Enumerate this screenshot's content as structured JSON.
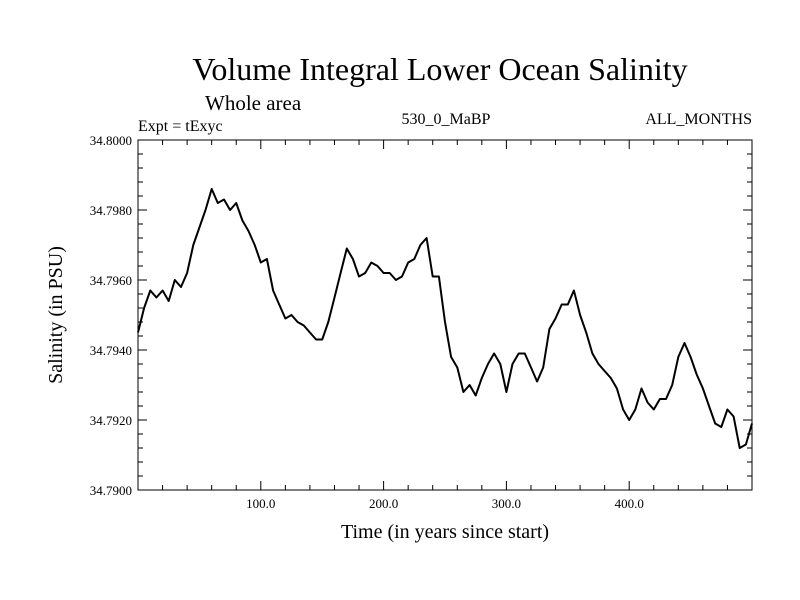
{
  "chart_data": {
    "type": "line",
    "title": "Volume Integral Lower Ocean Salinity",
    "subtitle": "Whole area",
    "header_left": "Expt = tExyc",
    "header_center": "530_0_MaBP",
    "header_right": "ALL_MONTHS",
    "xlabel": "Time (in years since start)",
    "ylabel": "Salinity (in PSU)",
    "xlim": [
      0,
      500
    ],
    "ylim": [
      34.79,
      34.8
    ],
    "x_ticks": [
      100,
      200,
      300,
      400
    ],
    "x_tick_labels": [
      "100.0",
      "200.0",
      "300.0",
      "400.0"
    ],
    "y_ticks": [
      34.79,
      34.792,
      34.794,
      34.796,
      34.798,
      34.8
    ],
    "y_tick_labels": [
      "34.7900",
      "34.7920",
      "34.7940",
      "34.7960",
      "34.7980",
      "34.8000"
    ],
    "grid": false,
    "series": [
      {
        "color": "#000000",
        "x": [
          0,
          5,
          10,
          15,
          20,
          25,
          30,
          35,
          40,
          45,
          50,
          55,
          60,
          65,
          70,
          75,
          80,
          85,
          90,
          95,
          100,
          105,
          110,
          115,
          120,
          125,
          130,
          135,
          140,
          145,
          150,
          155,
          160,
          165,
          170,
          175,
          180,
          185,
          190,
          195,
          200,
          205,
          210,
          215,
          220,
          225,
          230,
          235,
          240,
          245,
          250,
          255,
          260,
          265,
          270,
          275,
          280,
          285,
          290,
          295,
          300,
          305,
          310,
          315,
          320,
          325,
          330,
          335,
          340,
          345,
          350,
          355,
          360,
          365,
          370,
          375,
          380,
          385,
          390,
          395,
          400,
          405,
          410,
          415,
          420,
          425,
          430,
          435,
          440,
          445,
          450,
          455,
          460,
          465,
          470,
          475,
          480,
          485,
          490,
          495,
          500
        ],
        "values": [
          34.7945,
          34.7952,
          34.7957,
          34.7955,
          34.7957,
          34.7954,
          34.796,
          34.7958,
          34.7962,
          34.797,
          34.7975,
          34.798,
          34.7986,
          34.7982,
          34.7983,
          34.798,
          34.7982,
          34.7977,
          34.7974,
          34.797,
          34.7965,
          34.7966,
          34.7957,
          34.7953,
          34.7949,
          34.795,
          34.7948,
          34.7947,
          34.7945,
          34.7943,
          34.7943,
          34.7948,
          34.7955,
          34.7962,
          34.7969,
          34.7966,
          34.7961,
          34.7962,
          34.7965,
          34.7964,
          34.7962,
          34.7962,
          34.796,
          34.7961,
          34.7965,
          34.7966,
          34.797,
          34.7972,
          34.7961,
          34.7961,
          34.7948,
          34.7938,
          34.7935,
          34.7928,
          34.793,
          34.7927,
          34.7932,
          34.7936,
          34.7939,
          34.7936,
          34.7928,
          34.7936,
          34.7939,
          34.7939,
          34.7935,
          34.7931,
          34.7935,
          34.7946,
          34.7949,
          34.7953,
          34.7953,
          34.7957,
          34.795,
          34.7945,
          34.7939,
          34.7936,
          34.7934,
          34.7932,
          34.7929,
          34.7923,
          34.792,
          34.7923,
          34.7929,
          34.7925,
          34.7923,
          34.7926,
          34.7926,
          34.793,
          34.7938,
          34.7942,
          34.7938,
          34.7933,
          34.7929,
          34.7924,
          34.7919,
          34.7918,
          34.7923,
          34.7921,
          34.7912,
          34.7913,
          34.7919
        ]
      }
    ]
  }
}
